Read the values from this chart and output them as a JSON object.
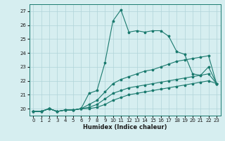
{
  "xlabel": "Humidex (Indice chaleur)",
  "ylabel": "",
  "bg_color": "#d6eef0",
  "grid_color": "#b0d4d8",
  "line_color": "#1a7a6e",
  "xlim": [
    -0.5,
    23.5
  ],
  "ylim": [
    19.5,
    27.5
  ],
  "yticks": [
    20,
    21,
    22,
    23,
    24,
    25,
    26,
    27
  ],
  "xticks": [
    0,
    1,
    2,
    3,
    4,
    5,
    6,
    7,
    8,
    9,
    10,
    11,
    12,
    13,
    14,
    15,
    16,
    17,
    18,
    19,
    20,
    21,
    22,
    23
  ],
  "lines": [
    {
      "x": [
        0,
        1,
        2,
        3,
        4,
        5,
        6,
        7,
        8,
        9,
        10,
        11,
        12,
        13,
        14,
        15,
        16,
        17,
        18,
        19,
        20,
        21,
        22,
        23
      ],
      "y": [
        19.8,
        19.8,
        20.0,
        19.8,
        19.9,
        19.9,
        20.0,
        21.1,
        21.3,
        23.3,
        26.3,
        27.1,
        25.5,
        25.6,
        25.5,
        25.6,
        25.6,
        25.2,
        24.1,
        23.9,
        22.5,
        22.4,
        23.0,
        21.8
      ]
    },
    {
      "x": [
        0,
        1,
        2,
        3,
        4,
        5,
        6,
        7,
        8,
        9,
        10,
        11,
        12,
        13,
        14,
        15,
        16,
        17,
        18,
        19,
        20,
        21,
        22,
        23
      ],
      "y": [
        19.8,
        19.8,
        20.0,
        19.8,
        19.9,
        19.9,
        20.0,
        20.3,
        20.6,
        21.2,
        21.8,
        22.1,
        22.3,
        22.5,
        22.7,
        22.8,
        23.0,
        23.2,
        23.4,
        23.5,
        23.6,
        23.7,
        23.8,
        21.8
      ]
    },
    {
      "x": [
        0,
        1,
        2,
        3,
        4,
        5,
        6,
        7,
        8,
        9,
        10,
        11,
        12,
        13,
        14,
        15,
        16,
        17,
        18,
        19,
        20,
        21,
        22,
        23
      ],
      "y": [
        19.8,
        19.8,
        20.0,
        19.8,
        19.9,
        19.9,
        20.0,
        20.1,
        20.3,
        20.7,
        21.1,
        21.3,
        21.5,
        21.6,
        21.7,
        21.8,
        21.9,
        22.0,
        22.1,
        22.2,
        22.3,
        22.4,
        22.5,
        21.8
      ]
    },
    {
      "x": [
        0,
        1,
        2,
        3,
        4,
        5,
        6,
        7,
        8,
        9,
        10,
        11,
        12,
        13,
        14,
        15,
        16,
        17,
        18,
        19,
        20,
        21,
        22,
        23
      ],
      "y": [
        19.8,
        19.8,
        20.0,
        19.8,
        19.9,
        19.9,
        20.0,
        20.0,
        20.1,
        20.3,
        20.6,
        20.8,
        21.0,
        21.1,
        21.2,
        21.3,
        21.4,
        21.5,
        21.6,
        21.7,
        21.8,
        21.9,
        22.0,
        21.8
      ]
    }
  ]
}
